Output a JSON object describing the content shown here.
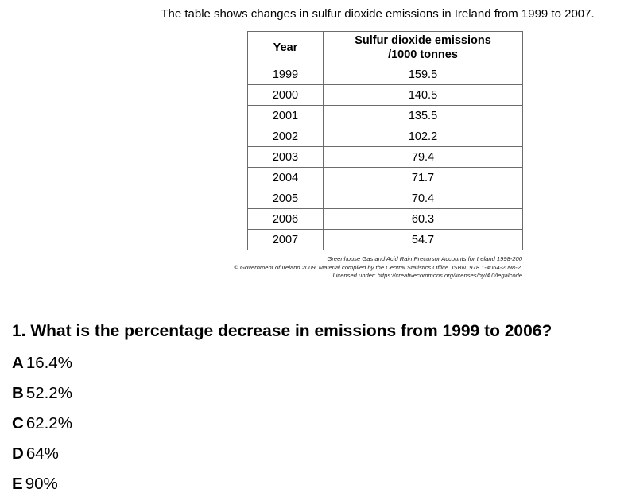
{
  "intro": "The table shows changes in sulfur dioxide emissions in Ireland from 1999 to 2007.",
  "table": {
    "headers": [
      "Year",
      "Sulfur dioxide emissions\n/1000 tonnes"
    ],
    "header_col2_line1": "Sulfur dioxide emissions",
    "header_col2_line2": "/1000 tonnes",
    "rows": [
      {
        "year": "1999",
        "value": "159.5"
      },
      {
        "year": "2000",
        "value": "140.5"
      },
      {
        "year": "2001",
        "value": "135.5"
      },
      {
        "year": "2002",
        "value": "102.2"
      },
      {
        "year": "2003",
        "value": "79.4"
      },
      {
        "year": "2004",
        "value": "71.7"
      },
      {
        "year": "2005",
        "value": "70.4"
      },
      {
        "year": "2006",
        "value": "60.3"
      },
      {
        "year": "2007",
        "value": "54.7"
      }
    ]
  },
  "source": {
    "line1": "Greenhouse Gas and Acid Rain Precursor Accounts for Ireland 1998-200",
    "line2": "© Government of Ireland 2009, Material complied by the Central Statistics Office.  ISBN: 978 1-4064-2098-2.",
    "line3": "Licensed under: https://creativecommons.org/licenses/by/4.0/legalcode"
  },
  "question": "1. What is the percentage decrease in emissions from 1999 to 2006?",
  "options": [
    {
      "letter": "A",
      "text": "16.4%"
    },
    {
      "letter": "B",
      "text": "52.2%"
    },
    {
      "letter": "C",
      "text": "62.2%"
    },
    {
      "letter": "D",
      "text": "64%"
    },
    {
      "letter": "E",
      "text": "90%"
    }
  ]
}
